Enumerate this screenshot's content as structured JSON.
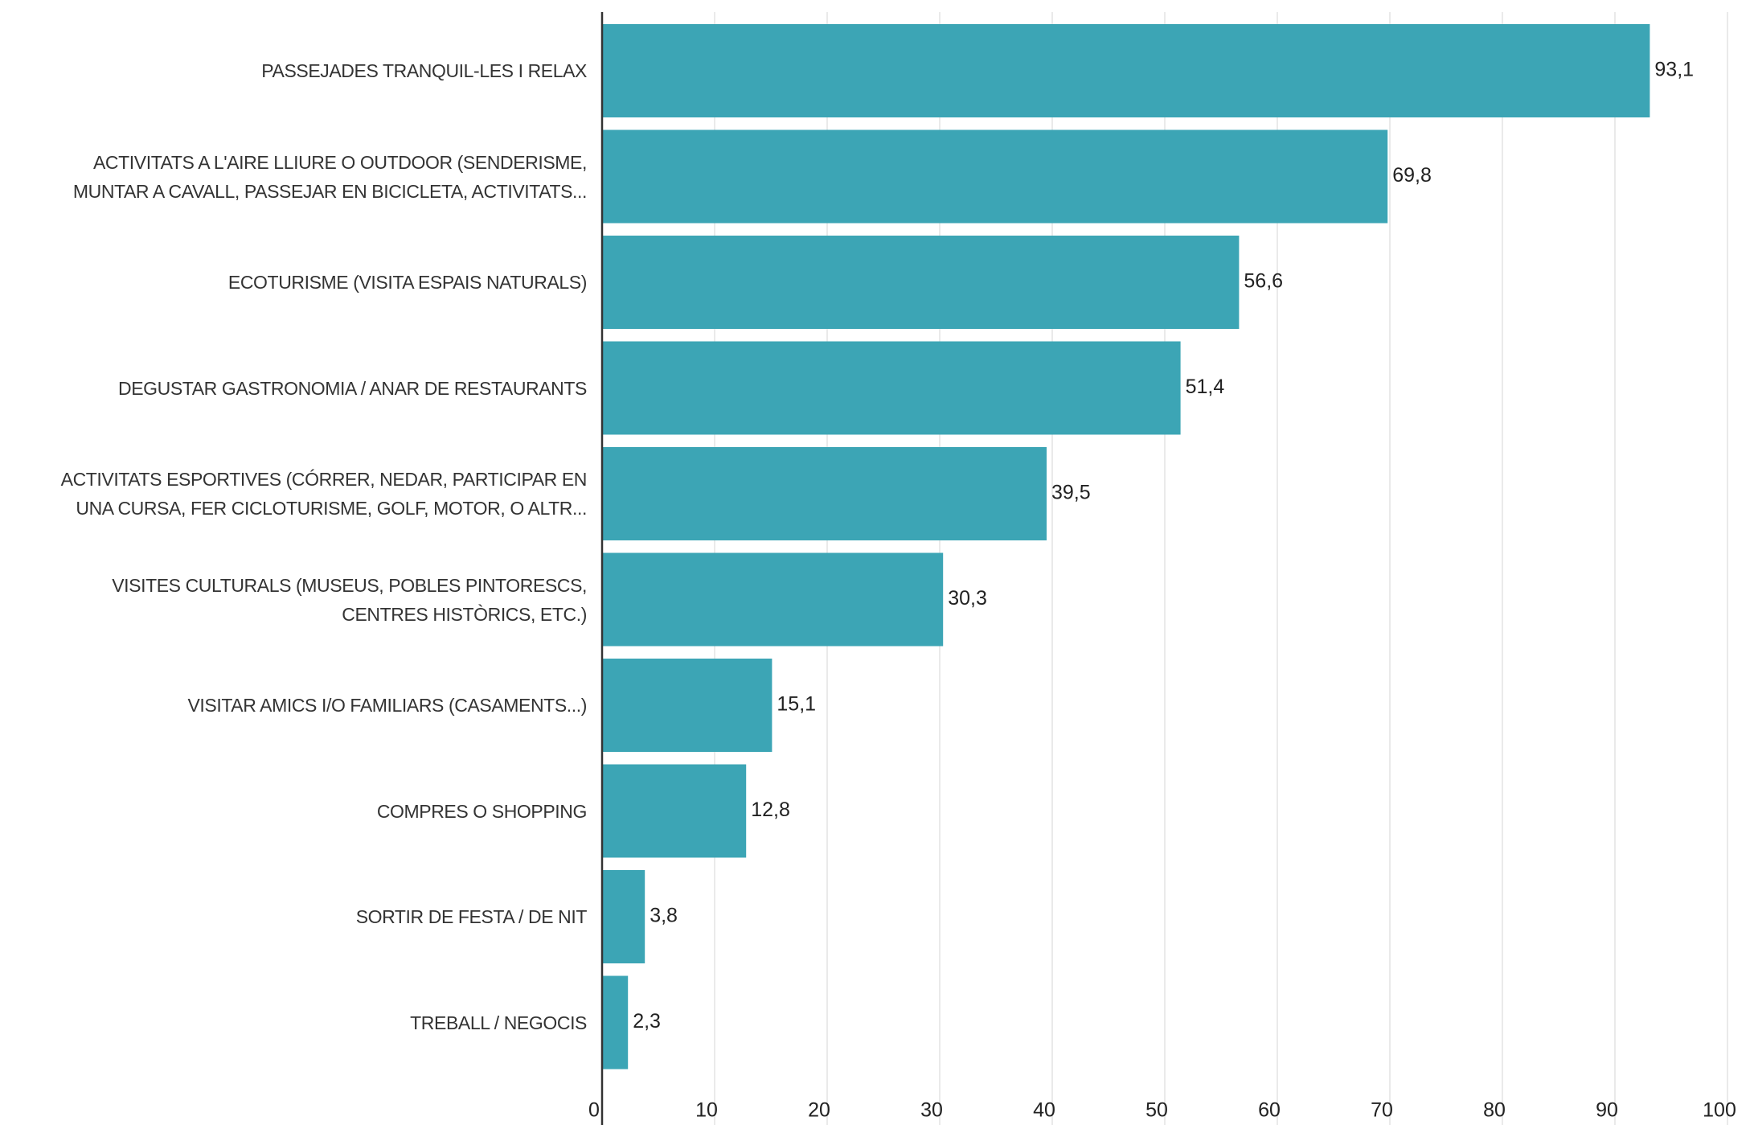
{
  "chart_data": {
    "type": "bar",
    "orientation": "horizontal",
    "color": "#3ca5b5",
    "categories": [
      "PASSEJADES TRANQUIL-LES I RELAX",
      "ACTIVITATS A L'AIRE LLIURE O OUTDOOR (SENDERISME,\nMUNTAR A CAVALL, PASSEJAR EN BICICLETA, ACTIVITATS...",
      "ECOTURISME (VISITA ESPAIS NATURALS)",
      "DEGUSTAR GASTRONOMIA / ANAR DE RESTAURANTS",
      "ACTIVITATS ESPORTIVES (CÓRRER, NEDAR, PARTICIPAR EN\nUNA CURSA, FER CICLOTURISME, GOLF, MOTOR, O ALTR...",
      "VISITES CULTURALS (MUSEUS, POBLES PINTORESCS,\nCENTRES HISTÒRICS, ETC.)",
      "VISITAR AMICS I/O FAMILIARS (CASAMENTS...)",
      "COMPRES O SHOPPING",
      "SORTIR DE FESTA / DE NIT",
      "TREBALL / NEGOCIS"
    ],
    "values": [
      93.1,
      69.8,
      56.6,
      51.4,
      39.5,
      30.3,
      15.1,
      12.8,
      3.8,
      2.3
    ],
    "value_labels": [
      "93,1",
      "69,8",
      "56,6",
      "51,4",
      "39,5",
      "30,3",
      "15,1",
      "12,8",
      "3,8",
      "2,3"
    ],
    "xlim": [
      0,
      100
    ],
    "xticks": [
      0,
      10,
      20,
      30,
      40,
      50,
      60,
      70,
      80,
      90,
      100
    ],
    "grid": true
  }
}
